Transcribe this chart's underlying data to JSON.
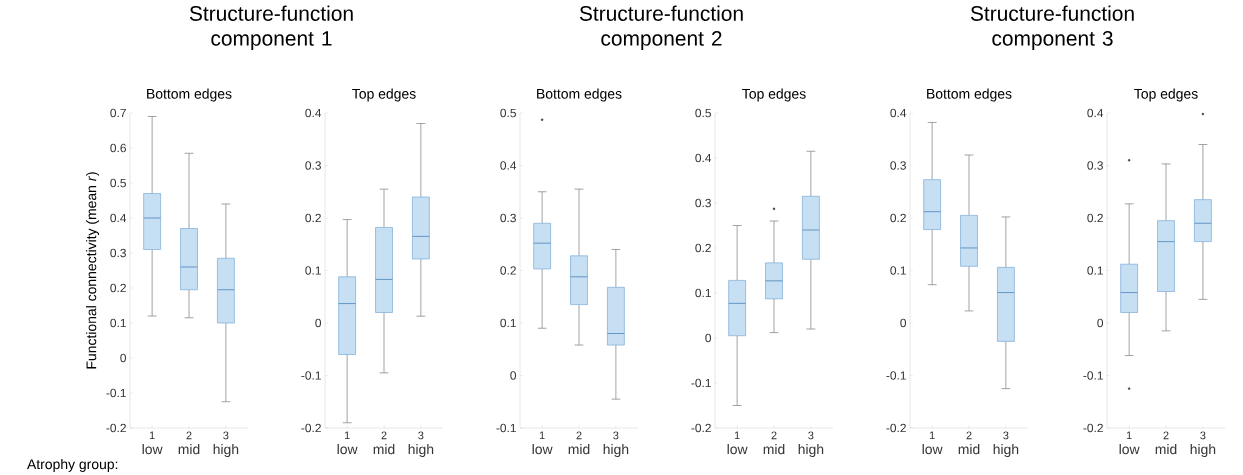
{
  "chart_data": [
    {
      "type": "box",
      "title": "Structure-function component 1",
      "subtitle": "Bottom edges",
      "ylabel": "Functional connectivity (mean *r*)",
      "categories": [
        "1",
        "2",
        "3"
      ],
      "annotations": [
        "Atrophy group:",
        "low",
        "mid",
        "high"
      ],
      "ylim": [
        -0.2,
        0.7
      ],
      "yticks": [
        -0.2,
        -0.1,
        0,
        0.1,
        0.2,
        0.3,
        0.4,
        0.5,
        0.6,
        0.7
      ],
      "series": [
        {
          "color": "#c6dff2",
          "boxes": [
            {
              "low": 0.12,
              "q1": 0.31,
              "median": 0.4,
              "q3": 0.47,
              "high": 0.69
            },
            {
              "low": 0.115,
              "q1": 0.195,
              "median": 0.26,
              "q3": 0.37,
              "high": 0.585
            },
            {
              "low": -0.125,
              "q1": 0.1,
              "median": 0.195,
              "q3": 0.285,
              "high": 0.44
            }
          ]
        }
      ]
    },
    {
      "type": "box",
      "subtitle": "Top edges",
      "categories": [
        "1",
        "2",
        "3"
      ],
      "annotations": [
        "low",
        "mid",
        "high"
      ],
      "ylim": [
        -0.2,
        0.4
      ],
      "yticks": [
        -0.2,
        -0.1,
        0,
        0.1,
        0.2,
        0.3,
        0.4
      ],
      "series": [
        {
          "color": "#c6dff2",
          "boxes": [
            {
              "low": -0.19,
              "q1": -0.06,
              "median": 0.037,
              "q3": 0.088,
              "high": 0.197
            },
            {
              "low": -0.095,
              "q1": 0.02,
              "median": 0.083,
              "q3": 0.182,
              "high": 0.255
            },
            {
              "low": 0.013,
              "q1": 0.122,
              "median": 0.165,
              "q3": 0.24,
              "high": 0.38
            }
          ]
        }
      ]
    },
    {
      "type": "box",
      "title": "Structure-function component 2",
      "subtitle": "Bottom edges",
      "categories": [
        "1",
        "2",
        "3"
      ],
      "annotations": [
        "low",
        "mid",
        "high"
      ],
      "ylim": [
        -0.1,
        0.5
      ],
      "yticks": [
        -0.1,
        0,
        0.1,
        0.2,
        0.3,
        0.4,
        0.5
      ],
      "series": [
        {
          "color": "#c6dff2",
          "boxes": [
            {
              "low": 0.09,
              "q1": 0.203,
              "median": 0.252,
              "q3": 0.29,
              "high": 0.35,
              "outliers": [
                0.487
              ]
            },
            {
              "low": 0.058,
              "q1": 0.135,
              "median": 0.188,
              "q3": 0.228,
              "high": 0.355
            },
            {
              "low": -0.045,
              "q1": 0.058,
              "median": 0.08,
              "q3": 0.168,
              "high": 0.24
            }
          ]
        }
      ]
    },
    {
      "type": "box",
      "subtitle": "Top edges",
      "categories": [
        "1",
        "2",
        "3"
      ],
      "annotations": [
        "low",
        "mid",
        "high"
      ],
      "ylim": [
        -0.2,
        0.5
      ],
      "yticks": [
        -0.2,
        -0.1,
        0,
        0.1,
        0.2,
        0.3,
        0.4,
        0.5
      ],
      "series": [
        {
          "color": "#c6dff2",
          "boxes": [
            {
              "low": -0.15,
              "q1": 0.005,
              "median": 0.077,
              "q3": 0.128,
              "high": 0.25
            },
            {
              "low": 0.012,
              "q1": 0.087,
              "median": 0.127,
              "q3": 0.167,
              "high": 0.26,
              "outliers": [
                0.287
              ]
            },
            {
              "low": 0.02,
              "q1": 0.175,
              "median": 0.24,
              "q3": 0.315,
              "high": 0.415
            }
          ]
        }
      ]
    },
    {
      "type": "box",
      "title": "Structure-function component 3",
      "subtitle": "Bottom edges",
      "categories": [
        "1",
        "2",
        "3"
      ],
      "annotations": [
        "low",
        "mid",
        "high"
      ],
      "ylim": [
        -0.2,
        0.4
      ],
      "yticks": [
        -0.2,
        -0.1,
        0,
        0.1,
        0.2,
        0.3,
        0.4
      ],
      "series": [
        {
          "color": "#c6dff2",
          "boxes": [
            {
              "low": 0.073,
              "q1": 0.178,
              "median": 0.212,
              "q3": 0.273,
              "high": 0.382
            },
            {
              "low": 0.023,
              "q1": 0.108,
              "median": 0.143,
              "q3": 0.205,
              "high": 0.32
            },
            {
              "low": -0.125,
              "q1": -0.035,
              "median": 0.058,
              "q3": 0.106,
              "high": 0.202
            }
          ]
        }
      ]
    },
    {
      "type": "box",
      "subtitle": "Top edges",
      "categories": [
        "1",
        "2",
        "3"
      ],
      "annotations": [
        "low",
        "mid",
        "high"
      ],
      "ylim": [
        -0.2,
        0.4
      ],
      "yticks": [
        -0.2,
        -0.1,
        0,
        0.1,
        0.2,
        0.3,
        0.4
      ],
      "series": [
        {
          "color": "#c6dff2",
          "boxes": [
            {
              "low": -0.062,
              "q1": 0.02,
              "median": 0.058,
              "q3": 0.112,
              "high": 0.227,
              "outliers": [
                0.31,
                -0.125
              ]
            },
            {
              "low": -0.015,
              "q1": 0.06,
              "median": 0.155,
              "q3": 0.195,
              "high": 0.303
            },
            {
              "low": 0.045,
              "q1": 0.155,
              "median": 0.19,
              "q3": 0.235,
              "high": 0.34,
              "outliers": [
                0.398
              ]
            }
          ]
        }
      ]
    }
  ]
}
